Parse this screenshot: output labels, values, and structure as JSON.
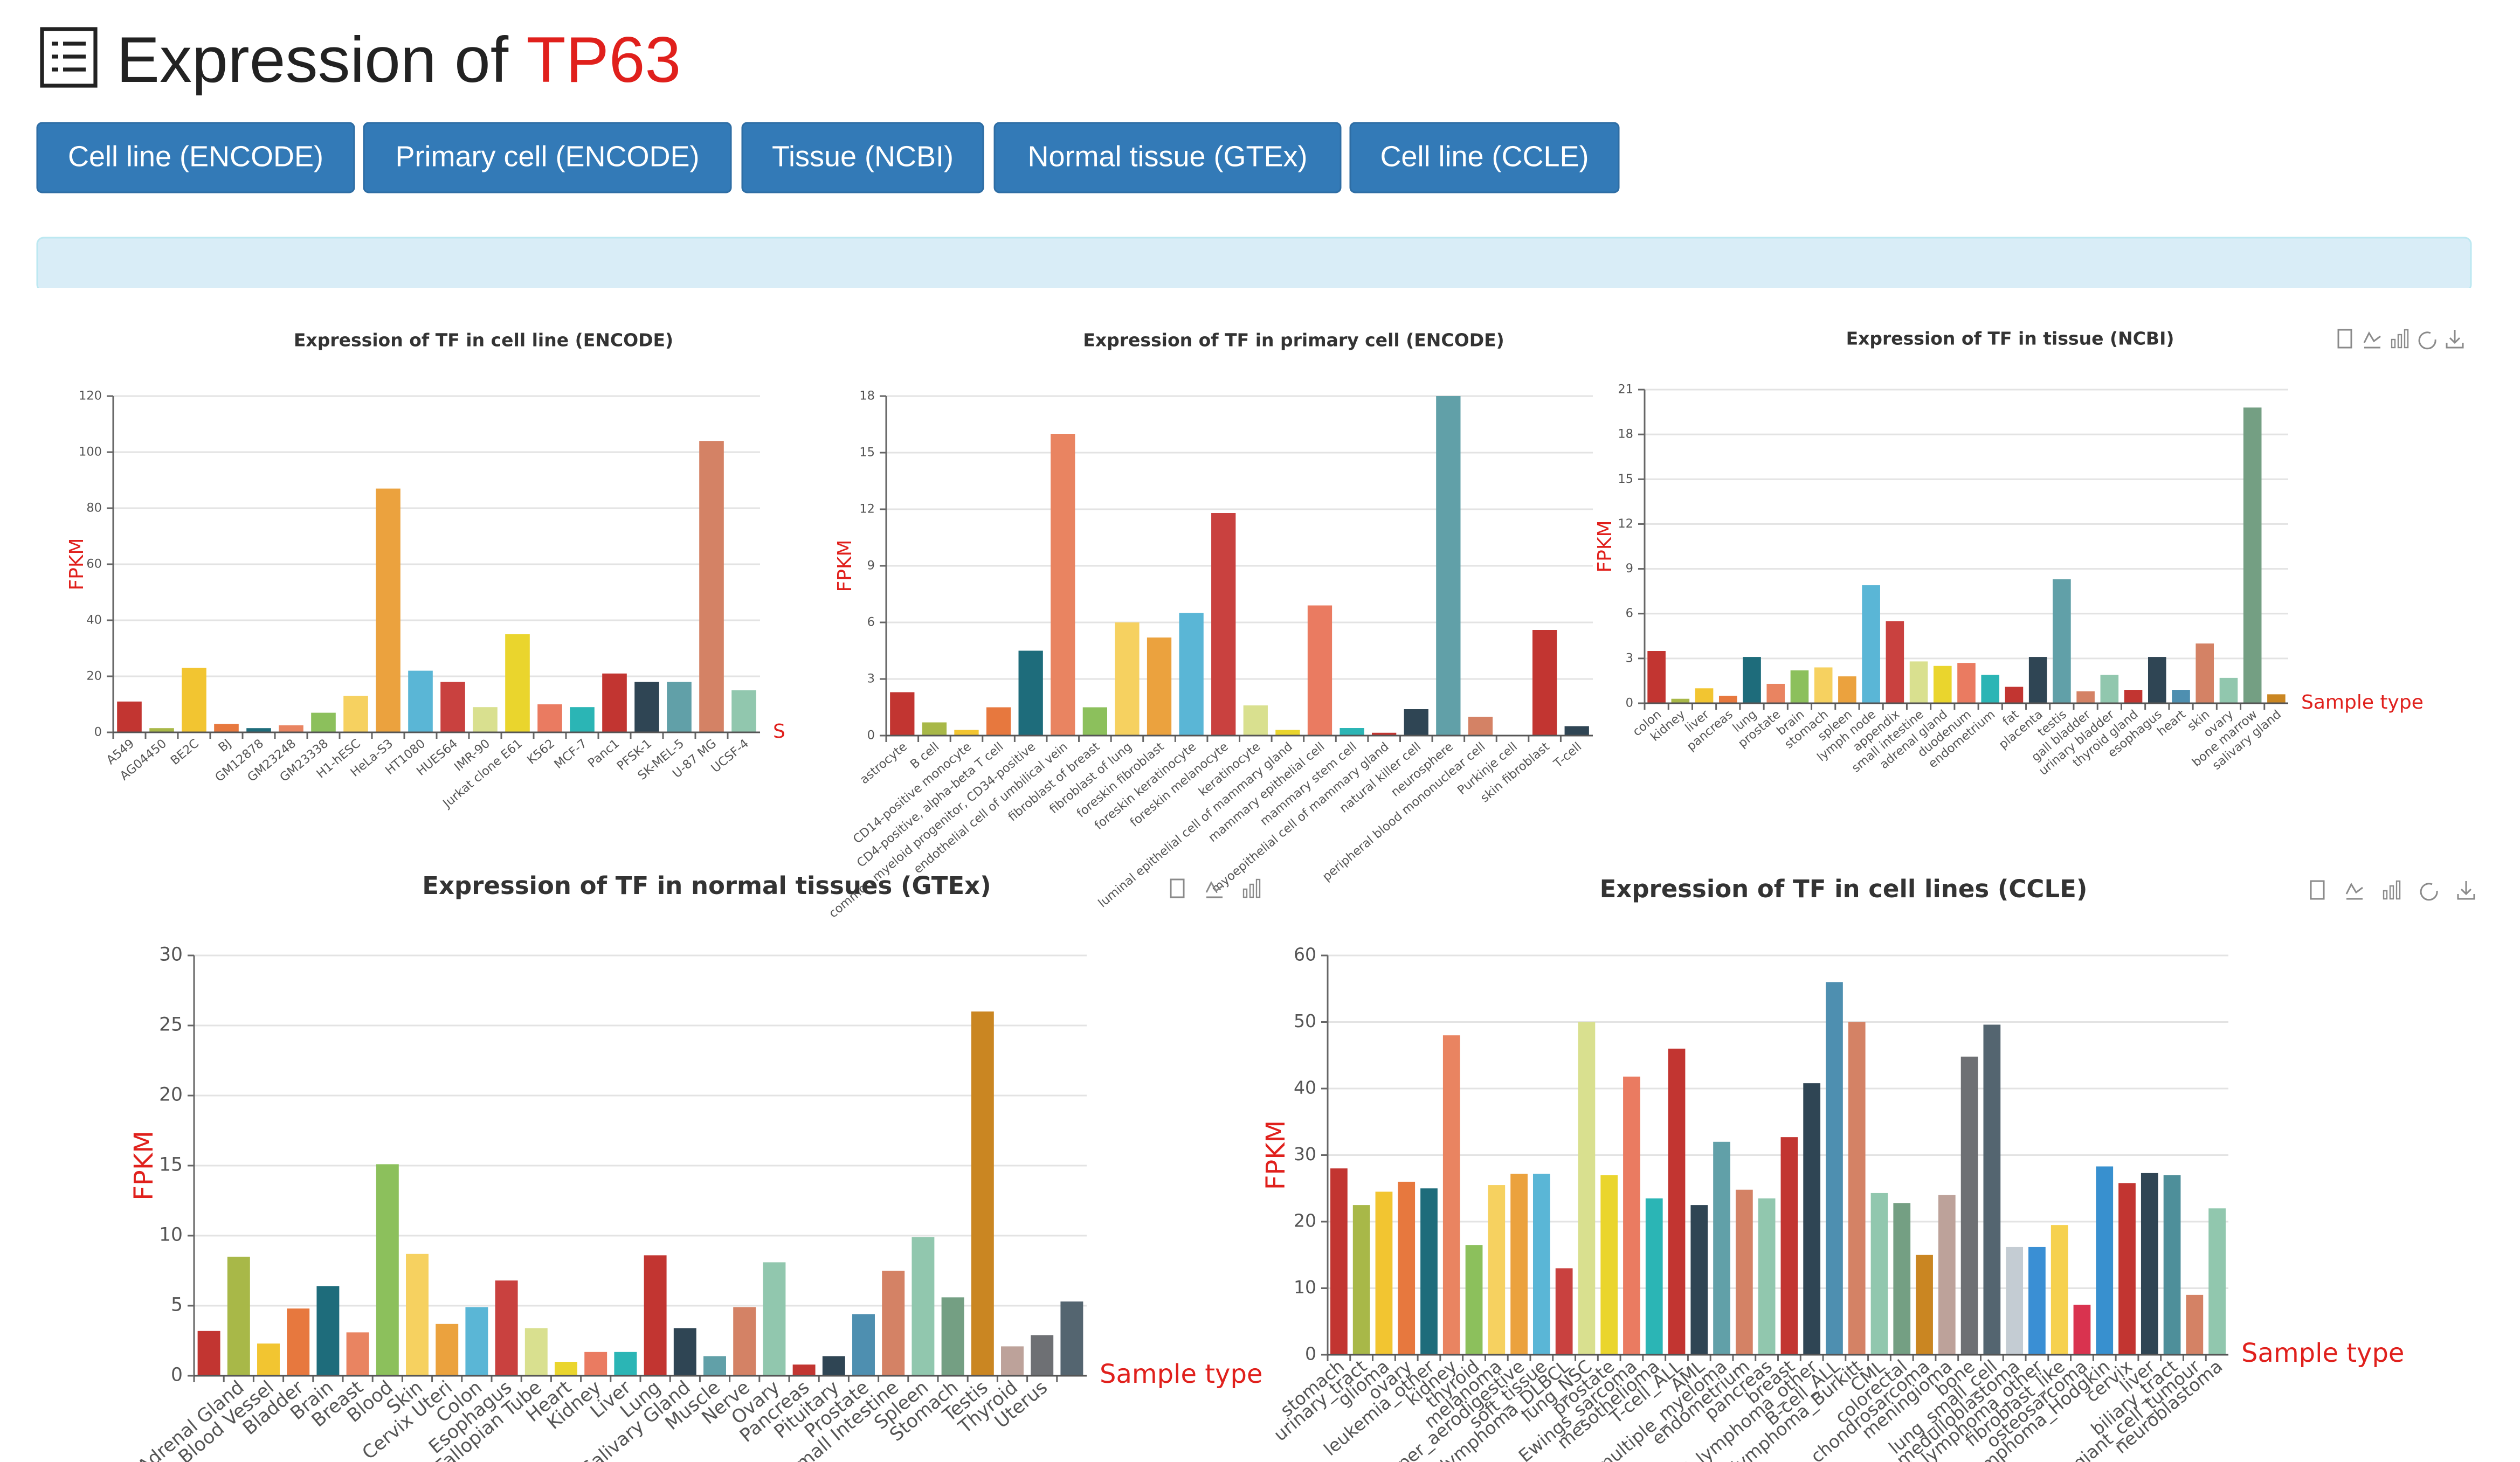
{
  "header": {
    "title": "Expression of ",
    "gene": "TP63"
  },
  "buttons": [
    "Cell line (ENCODE)",
    "Primary cell (ENCODE)",
    "Tissue (NCBI)",
    "Normal tissue (GTEx)",
    "Cell line (CCLE)"
  ],
  "palette": [
    "#c23531",
    "#a8b848",
    "#f2c531",
    "#e7783e",
    "#1e6c7b",
    "#e98461",
    "#8cc05c",
    "#f6d160",
    "#eba23e",
    "#5ab6d6",
    "#c9413f",
    "#d9e08f",
    "#ead52d",
    "#ea7b61",
    "#2bb5b5",
    "#c23531",
    "#2f4554",
    "#61a0a8",
    "#d48265",
    "#91c7ae",
    "#c23531",
    "#2f4554",
    "#4e8fb0",
    "#d48265",
    "#91c7ae",
    "#749f83",
    "#ca8622",
    "#bda29a",
    "#6e7074",
    "#546570",
    "#c4ccd3",
    "#3a8fd4",
    "#f6d14e",
    "#d9334f",
    "#3890cf",
    "#c23531",
    "#2f4554",
    "#4e8f9a",
    "#d48265",
    "#91c7ae"
  ],
  "chart_data": [
    {
      "type": "bar",
      "title": "Expression of TF in cell line (ENCODE)",
      "y_label": "FPKM",
      "x_label": "S",
      "categories": [
        "A549",
        "AG04450",
        "BE2C",
        "BJ",
        "GM12878",
        "GM23248",
        "GM23338",
        "H1-hESC",
        "HeLa-S3",
        "HT1080",
        "HUES64",
        "IMR-90",
        "Jurkat clone E61",
        "K562",
        "MCF-7",
        "Panc1",
        "PFSK-1",
        "SK-MEL-5",
        "U-87 MG",
        "UCSF-4"
      ],
      "values": [
        11,
        1.5,
        23,
        3,
        1.5,
        2.5,
        7,
        13,
        87,
        22,
        18,
        9,
        35,
        10,
        9,
        21,
        18,
        18,
        104,
        15
      ],
      "ylim": [
        0,
        120
      ],
      "yticks": [
        0,
        20,
        40,
        60,
        80,
        100,
        120
      ],
      "grid": true
    },
    {
      "type": "bar",
      "title": "Expression of TF in primary cell (ENCODE)",
      "y_label": "FPKM",
      "categories": [
        "astrocyte",
        "B cell",
        "CD14-positive monocyte",
        "CD4-positive, alpha-beta T cell",
        "common myeloid progenitor, CD34-positive",
        "endothelial cell of umbilical vein",
        "fibroblast of breast",
        "fibroblast of lung",
        "foreskin fibroblast",
        "foreskin keratinocyte",
        "foreskin melanocyte",
        "keratinocyte",
        "luminal epithelial cell of mammary gland",
        "mammary epithelial cell",
        "mammary stem cell",
        "myoepithelial cell of mammary gland",
        "natural killer cell",
        "neurosphere",
        "peripheral blood mononuclear cell",
        "Purkinje cell",
        "skin fibroblast",
        "T-cell"
      ],
      "values": [
        2.3,
        0.7,
        0.3,
        1.5,
        4.5,
        16,
        1.5,
        6,
        5.2,
        6.5,
        11.8,
        1.6,
        0.3,
        6.9,
        0.4,
        0.15,
        1.4,
        18,
        1,
        0,
        5.6,
        0.5
      ],
      "ylim": [
        0,
        18
      ],
      "yticks": [
        0,
        3,
        6,
        9,
        12,
        15,
        18
      ],
      "grid": true
    },
    {
      "type": "bar",
      "title": "Expression of TF in tissue (NCBI)",
      "y_label": "FPKM",
      "x_label": "Sample type",
      "categories": [
        "colon",
        "kidney",
        "liver",
        "pancreas",
        "lung",
        "prostate",
        "brain",
        "stomach",
        "spleen",
        "lymph node",
        "appendix",
        "small intestine",
        "adrenal gland",
        "duodenum",
        "endometrium",
        "fat",
        "placenta",
        "testis",
        "gall bladder",
        "urinary bladder",
        "thyroid gland",
        "esophagus",
        "heart",
        "skin",
        "ovary",
        "bone marrow",
        "salivary gland"
      ],
      "values": [
        3.5,
        0.3,
        1,
        0.5,
        3.1,
        1.3,
        2.2,
        2.4,
        1.8,
        7.9,
        5.5,
        2.8,
        2.5,
        2.7,
        1.9,
        1.1,
        3.1,
        8.3,
        0.8,
        1.9,
        0.9,
        3.1,
        0.9,
        4,
        1.7,
        19.8,
        0.6
      ],
      "ylim": [
        0,
        21
      ],
      "yticks": [
        0,
        3,
        6,
        9,
        12,
        15,
        18,
        21
      ],
      "grid": true
    },
    {
      "type": "bar",
      "title": "Expression of TF in normal tissues (GTEx)",
      "y_label": "FPKM",
      "x_label": "Sample type",
      "categories": [
        null,
        "Adrenal Gland",
        "Blood Vessel",
        "Bladder",
        "Brain",
        "Breast",
        "Blood",
        "Skin",
        "Cervix Uteri",
        "Colon",
        "Esophagus",
        "Fallopian Tube",
        "Heart",
        "Kidney",
        "Liver",
        "Lung",
        "Salivary Gland",
        "Muscle",
        "Nerve",
        "Ovary",
        "Pancreas",
        "Pituitary",
        "Prostate",
        "Small Intestine",
        "Spleen",
        "Stomach",
        "Testis",
        "Thyroid",
        "Uterus",
        null
      ],
      "values": [
        3.2,
        8.5,
        2.3,
        4.8,
        6.4,
        3.1,
        15.1,
        8.7,
        3.7,
        4.9,
        6.8,
        3.4,
        1,
        1.7,
        1.7,
        8.6,
        3.4,
        1.4,
        4.9,
        8.1,
        0.8,
        1.4,
        4.4,
        7.5,
        9.9,
        5.6,
        26,
        2.1,
        2.9,
        5.3
      ],
      "ylim": [
        0,
        30
      ],
      "yticks": [
        0,
        5,
        10,
        15,
        20,
        25,
        30
      ],
      "grid": true
    },
    {
      "type": "bar",
      "title": "Expression of TF in cell lines (CCLE)",
      "y_label": "FPKM",
      "x_label": "Sample type",
      "categories": [
        "stomach",
        "urinary_tract",
        "glioma",
        "ovary",
        "leukemia_other",
        "kidney",
        "thyroid",
        "melanoma",
        "upper_aerodigestive",
        "soft_tissue",
        "lymphoma_DLBCL",
        "lung_NSC",
        "prostate",
        "Ewings_sarcoma",
        "mesothelioma",
        "T-cell_ALL",
        "AML",
        "multiple_myeloma",
        "endometrium",
        "pancreas",
        "breast",
        "B-cell_lymphoma_other",
        "B-cell_ALL",
        "lymphoma_Burkitt",
        "CML",
        "colorectal",
        "chondrosarcoma",
        "meningioma",
        "bone",
        "lung_small_cell",
        "medulloblastoma",
        "T-cell_lymphoma_other",
        "fibroblast_like",
        "osteosarcoma",
        "lymphoma_Hodgkin",
        "cervix",
        "liver",
        "biliary_tract",
        "giant_cell_tumour",
        "neuroblastoma"
      ],
      "values": [
        28,
        22.5,
        24.5,
        26,
        25,
        48,
        16.5,
        25.5,
        27.2,
        27.2,
        13,
        50,
        27,
        41.8,
        23.5,
        46,
        22.5,
        32,
        24.8,
        23.5,
        32.7,
        40.8,
        56,
        50,
        24.3,
        22.8,
        15,
        24,
        44.8,
        49.6,
        16.2,
        16.2,
        19.5,
        7.5,
        28.3,
        25.8,
        27.3,
        27,
        9,
        22
      ],
      "ylim": [
        0,
        60
      ],
      "yticks": [
        0,
        10,
        20,
        30,
        40,
        50,
        60
      ],
      "grid": true
    }
  ]
}
